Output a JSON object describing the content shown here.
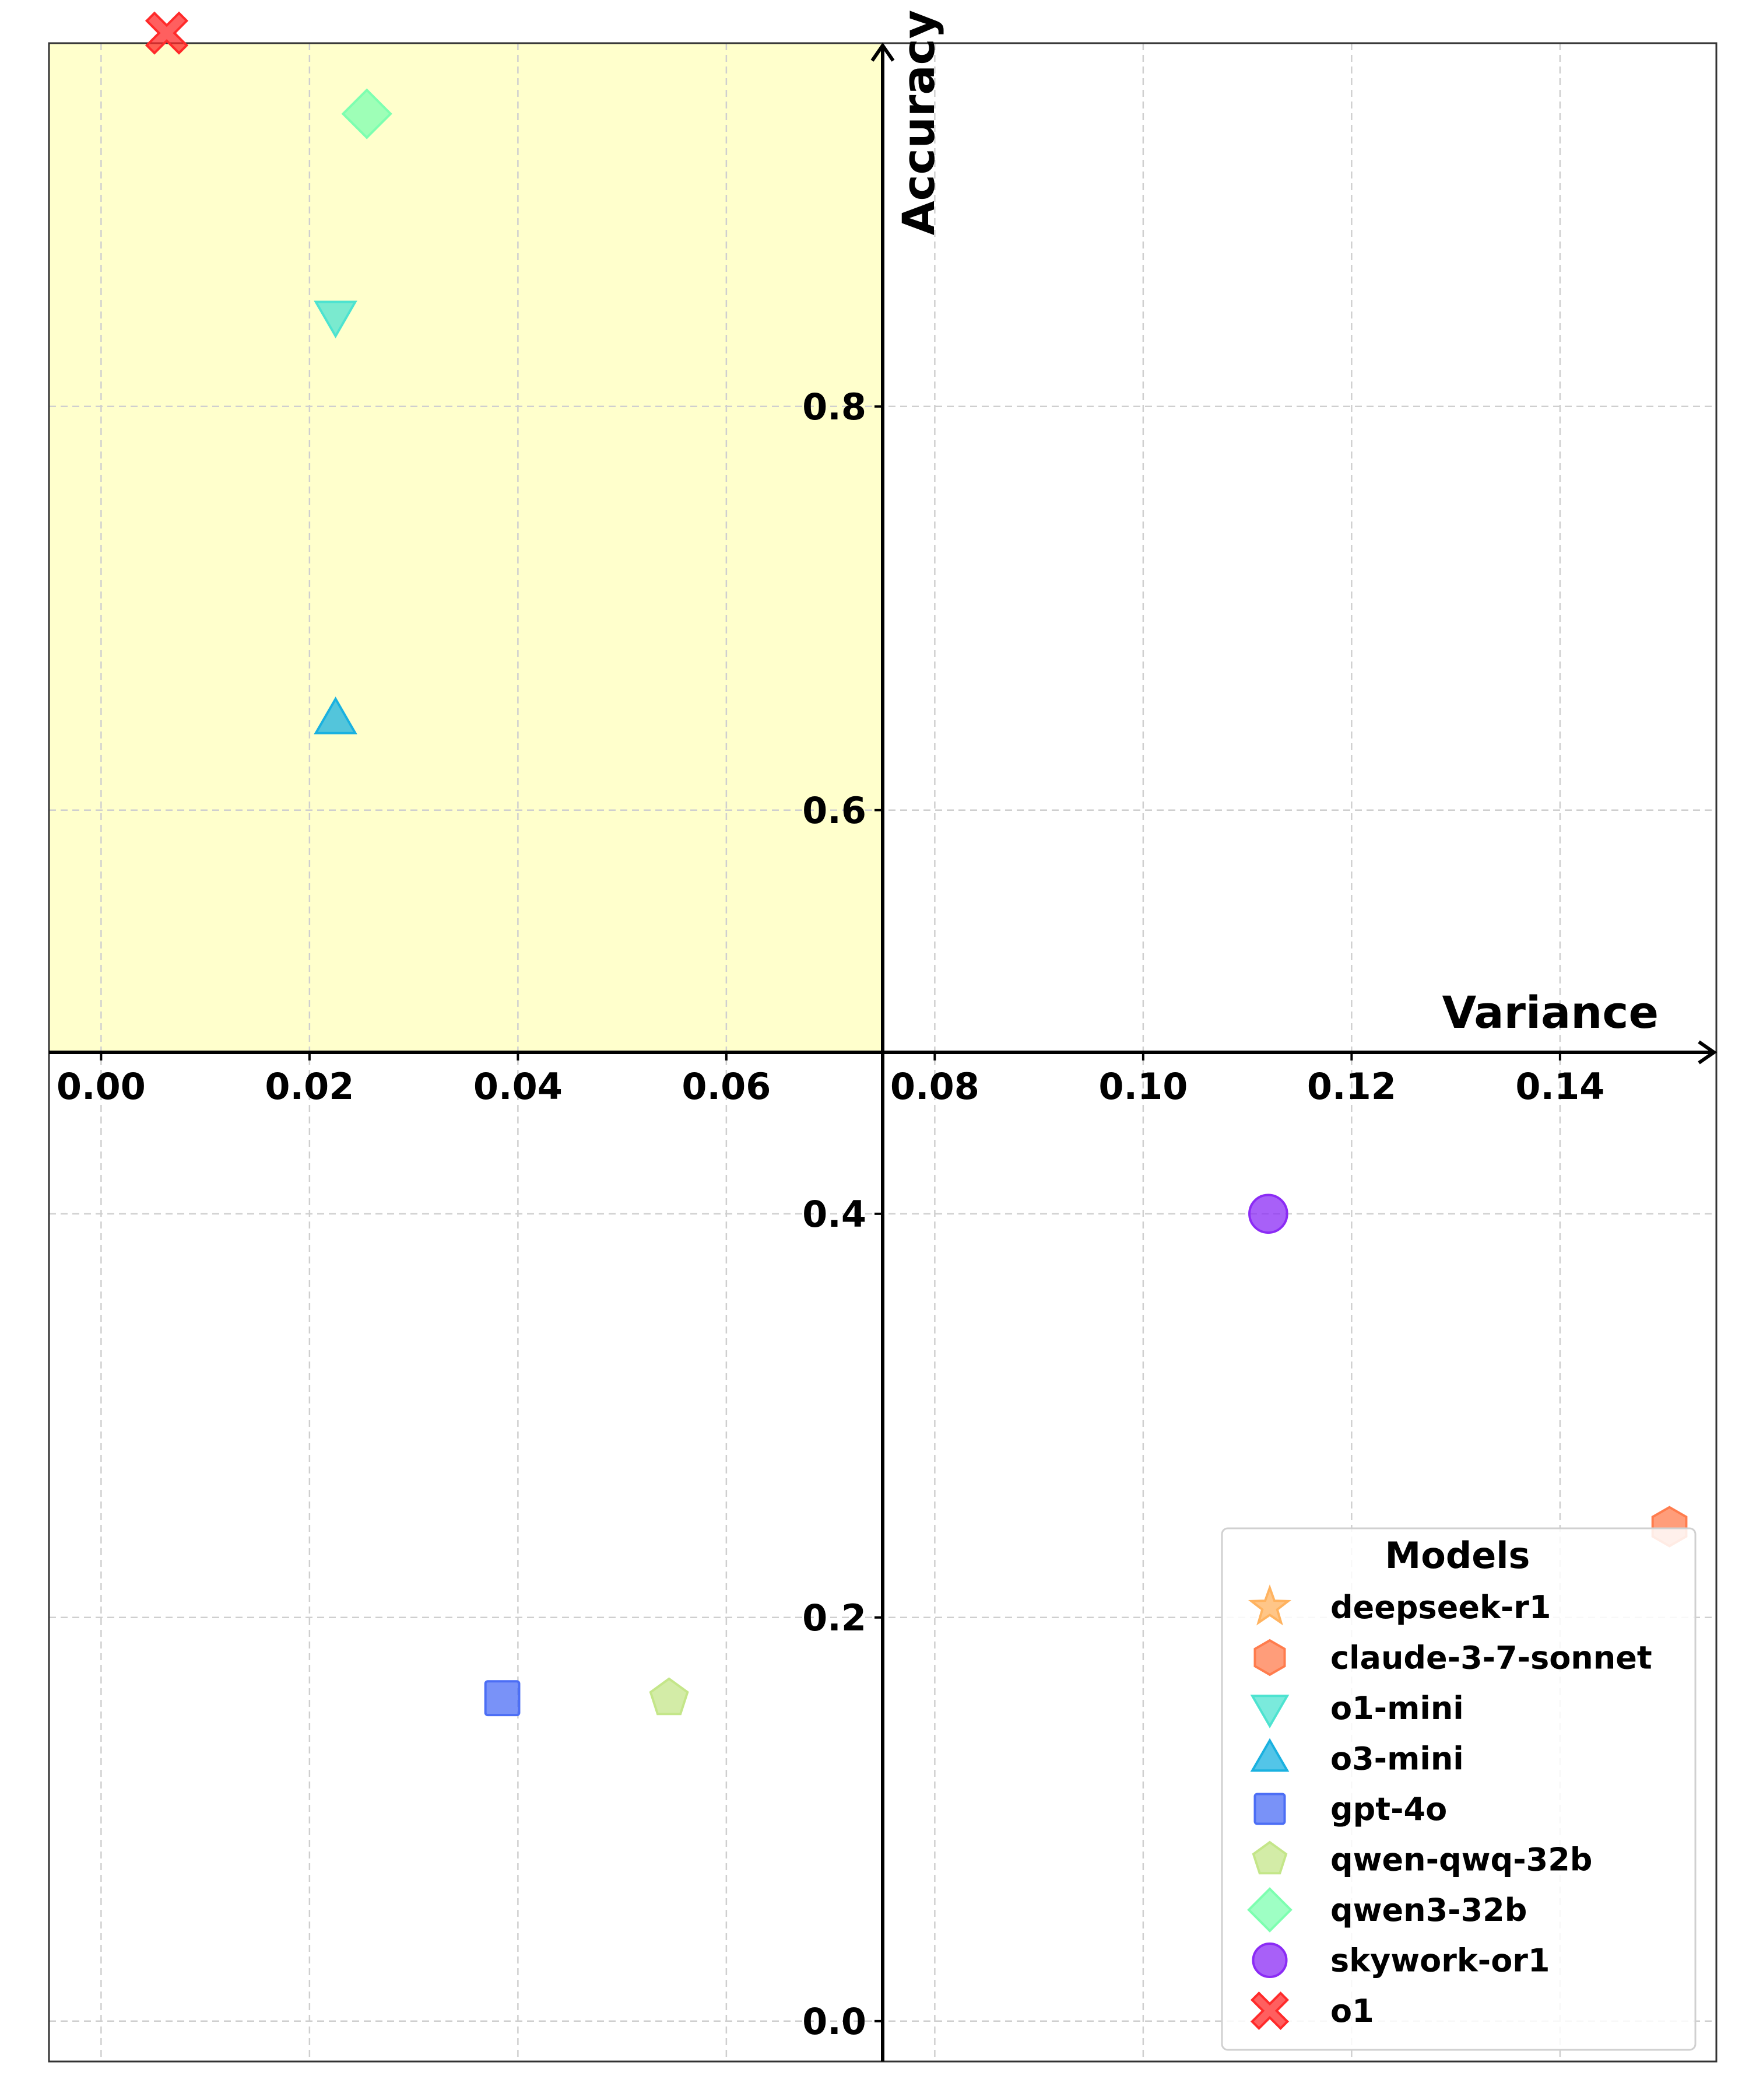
{
  "chart_data": {
    "type": "scatter",
    "title": "",
    "xlabel": "Variance",
    "ylabel": "Accuracy",
    "xlim": [
      -0.005,
      0.155
    ],
    "ylim": [
      -0.02,
      0.98
    ],
    "x_ticks": [
      0.0,
      0.02,
      0.04,
      0.06,
      0.08,
      0.1,
      0.12,
      0.14
    ],
    "x_tick_labels": [
      "0.00",
      "0.02",
      "0.04",
      "0.06",
      "0.08",
      "0.10",
      "0.12",
      "0.14"
    ],
    "y_ticks": [
      0.0,
      0.2,
      0.4,
      0.6,
      0.8
    ],
    "y_tick_labels": [
      "0.0",
      "0.2",
      "0.4",
      "0.6",
      "0.8"
    ],
    "axes_cross_at": {
      "x": 0.075,
      "y": 0.48
    },
    "grid": true,
    "highlight_region": {
      "x": [
        -0.005,
        0.075
      ],
      "y": [
        0.48,
        0.98
      ],
      "color": "#ffffcc"
    },
    "legend": {
      "title": "Models",
      "position": "lower-right"
    },
    "series": [
      {
        "name": "deepseek-r1",
        "marker": "star",
        "color": "#ffb360",
        "points": []
      },
      {
        "name": "claude-3-7-sonnet",
        "marker": "hexagon",
        "color": "#ff7c4d",
        "points": [
          [
            0.1505,
            0.245
          ]
        ]
      },
      {
        "name": "o1-mini",
        "marker": "triangle-down",
        "color": "#4de3d0",
        "points": [
          [
            0.0225,
            0.845
          ]
        ]
      },
      {
        "name": "o3-mini",
        "marker": "triangle-up",
        "color": "#1ab1e0",
        "points": [
          [
            0.0225,
            0.645
          ]
        ]
      },
      {
        "name": "gpt-4o",
        "marker": "square",
        "color": "#4c6ef5",
        "points": [
          [
            0.0385,
            0.16
          ]
        ]
      },
      {
        "name": "qwen-qwq-32b",
        "marker": "pentagon",
        "color": "#c4e689",
        "points": [
          [
            0.0545,
            0.16
          ]
        ]
      },
      {
        "name": "qwen3-32b",
        "marker": "diamond",
        "color": "#7dffb0",
        "points": [
          [
            0.0255,
            0.945
          ]
        ]
      },
      {
        "name": "skywork-or1",
        "marker": "circle",
        "color": "#8b2bf5",
        "points": [
          [
            0.112,
            0.4
          ]
        ]
      },
      {
        "name": "o1",
        "marker": "x-filled",
        "color": "#ff2a2a",
        "points": [
          [
            0.0063,
            0.985
          ]
        ]
      }
    ]
  }
}
